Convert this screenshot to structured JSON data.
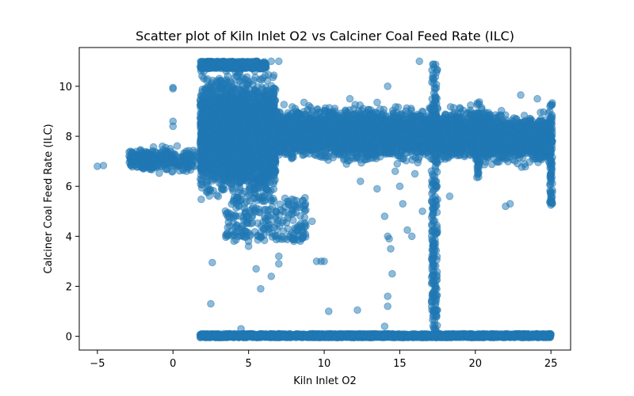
{
  "chart_data": {
    "type": "scatter",
    "title": "Scatter plot of Kiln Inlet O2 vs Calciner Coal Feed Rate (ILC)",
    "xlabel": "Kiln Inlet O2",
    "ylabel": "Calciner Coal Feed Rate (ILC)",
    "xlim": [
      -6.2,
      26.3
    ],
    "ylim": [
      -0.55,
      11.55
    ],
    "xticks": [
      -5,
      0,
      5,
      10,
      15,
      20,
      25
    ],
    "yticks": [
      0,
      2,
      4,
      6,
      8,
      10
    ],
    "grid": false,
    "legend": "none",
    "marker_color": "#1f77b4",
    "marker_alpha": 0.5,
    "series": [
      {
        "clusters": [
          {
            "x_range": [
              1.8,
              6.8
            ],
            "y_range": [
              5.0,
              11.0
            ],
            "count": 3200,
            "shape": "block"
          },
          {
            "x_range": [
              6.5,
              21.0
            ],
            "y_range": [
              6.8,
              9.4
            ],
            "count": 3600,
            "shape": "band"
          },
          {
            "x_range": [
              20.0,
              25.0
            ],
            "y_range": [
              6.6,
              9.2
            ],
            "count": 900,
            "shape": "band"
          },
          {
            "x_range": [
              -2.9,
              1.5
            ],
            "y_range": [
              6.4,
              7.7
            ],
            "count": 320,
            "shape": "band"
          },
          {
            "x_range": [
              1.8,
              25.0
            ],
            "y_range": [
              -0.05,
              0.1
            ],
            "count": 2200,
            "shape": "line"
          },
          {
            "x_range": [
              3.4,
              8.8
            ],
            "y_range": [
              3.8,
              5.6
            ],
            "count": 240,
            "shape": "cloud"
          },
          {
            "x_range": [
              1.8,
              6.2
            ],
            "y_range": [
              10.7,
              11.0
            ],
            "count": 400,
            "shape": "cap"
          },
          {
            "x_range": [
              17.1,
              17.5
            ],
            "y_range": [
              0.0,
              11.0
            ],
            "count": 260,
            "shape": "column"
          },
          {
            "x_range": [
              24.9,
              25.1
            ],
            "y_range": [
              5.2,
              9.4
            ],
            "count": 90,
            "shape": "column"
          },
          {
            "x_range": [
              20.1,
              20.3
            ],
            "y_range": [
              6.3,
              9.4
            ],
            "count": 60,
            "shape": "column"
          }
        ],
        "points": [
          [
            -5.0,
            6.8
          ],
          [
            -4.6,
            6.83
          ],
          [
            0.0,
            9.95
          ],
          [
            0.0,
            9.9
          ],
          [
            0.0,
            8.6
          ],
          [
            0.0,
            8.4
          ],
          [
            2.5,
            1.3
          ],
          [
            2.6,
            2.95
          ],
          [
            4.5,
            0.3
          ],
          [
            5.0,
            3.6
          ],
          [
            5.5,
            2.7
          ],
          [
            5.8,
            1.9
          ],
          [
            6.5,
            2.4
          ],
          [
            7.0,
            2.9
          ],
          [
            7.0,
            3.2
          ],
          [
            7.0,
            11.0
          ],
          [
            6.5,
            11.0
          ],
          [
            9.5,
            3.0
          ],
          [
            9.8,
            3.0
          ],
          [
            10.0,
            3.0
          ],
          [
            10.3,
            1.0
          ],
          [
            11.7,
            9.5
          ],
          [
            12.2,
            1.05
          ],
          [
            12.4,
            6.2
          ],
          [
            13.4,
            7.2
          ],
          [
            13.5,
            5.9
          ],
          [
            14.0,
            4.8
          ],
          [
            14.0,
            0.4
          ],
          [
            14.2,
            1.2
          ],
          [
            14.2,
            1.6
          ],
          [
            14.3,
            3.9
          ],
          [
            14.2,
            4.0
          ],
          [
            14.4,
            3.5
          ],
          [
            14.5,
            2.5
          ],
          [
            14.2,
            10.0
          ],
          [
            14.7,
            6.6
          ],
          [
            15.2,
            5.3
          ],
          [
            15.5,
            4.25
          ],
          [
            15.8,
            4.0
          ],
          [
            16.3,
            11.0
          ],
          [
            16.0,
            6.5
          ],
          [
            18.3,
            5.6
          ],
          [
            19.0,
            9.1
          ],
          [
            22.0,
            5.2
          ],
          [
            22.3,
            5.3
          ],
          [
            23.0,
            9.65
          ],
          [
            24.1,
            9.5
          ],
          [
            25.0,
            5.6
          ],
          [
            25.0,
            5.25
          ],
          [
            15.0,
            6.0
          ],
          [
            16.5,
            5.0
          ],
          [
            8.0,
            3.8
          ],
          [
            8.5,
            4.4
          ],
          [
            9.2,
            4.6
          ]
        ]
      }
    ]
  }
}
